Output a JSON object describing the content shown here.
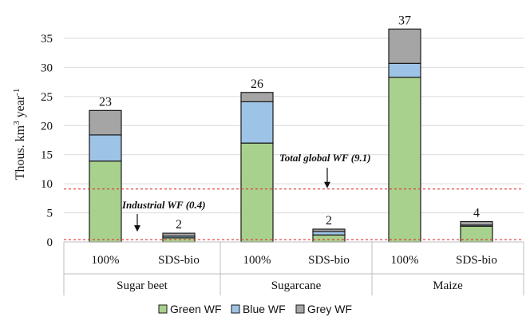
{
  "chart_data": {
    "type": "bar",
    "stacked": true,
    "title": "",
    "ylabel": "Thous. km³ year⁻¹",
    "ylabel_parts": {
      "base": "Thous. km",
      "sup1": "3",
      "mid": " year",
      "sup2": "-1"
    },
    "ylim": [
      0,
      35
    ],
    "yticks": [
      "0",
      "5",
      "10",
      "15",
      "20",
      "25",
      "30",
      "35"
    ],
    "groups": [
      "Sugar beet",
      "Sugarcane",
      "Maize"
    ],
    "categories": [
      "100%",
      "SDS-bio",
      "100%",
      "SDS-bio",
      "100%",
      "SDS-bio"
    ],
    "series": [
      {
        "name": "Green WF",
        "color": "#a9d18e",
        "values": [
          13.9,
          0.7,
          17.0,
          1.2,
          28.3,
          2.7
        ]
      },
      {
        "name": "Blue WF",
        "color": "#9dc3e6",
        "values": [
          4.5,
          0.3,
          7.1,
          0.6,
          2.4,
          0.2
        ]
      },
      {
        "name": "Grey WF",
        "color": "#a5a5a5",
        "values": [
          4.2,
          0.5,
          1.6,
          0.4,
          5.9,
          0.6
        ]
      }
    ],
    "totals_labels": [
      "23",
      "2",
      "26",
      "2",
      "37",
      "4"
    ],
    "reference_lines": [
      {
        "value": 9.1,
        "label": "Total global WF (9.1)",
        "color": "#e03030"
      },
      {
        "value": 0.4,
        "label": "Industrial WF (0.4)",
        "color": "#e03030"
      }
    ],
    "legend_position": "bottom",
    "grid": "horizontal"
  }
}
